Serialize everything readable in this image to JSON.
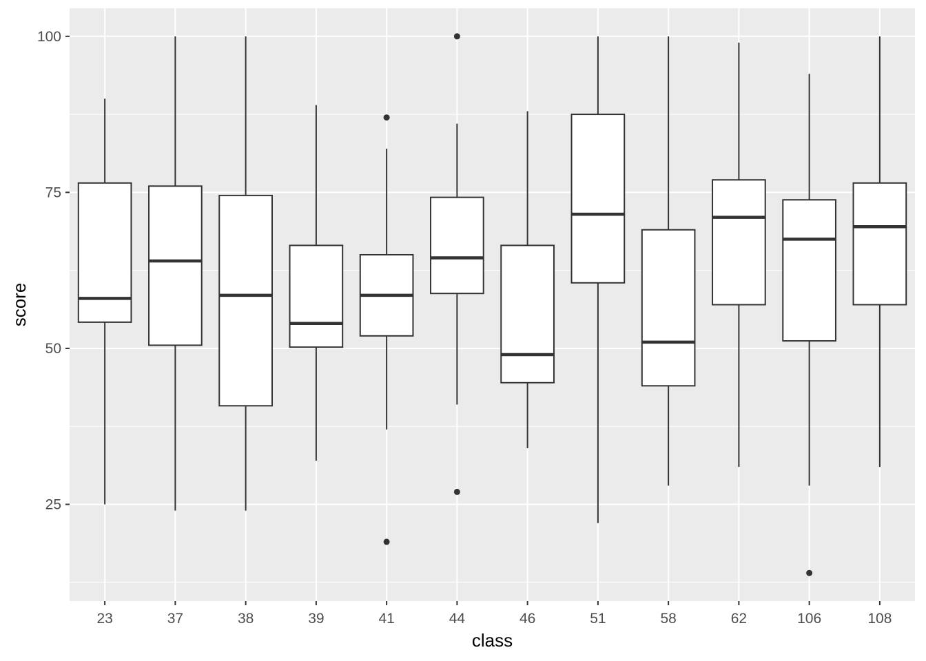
{
  "chart_data": {
    "type": "boxplot",
    "xlabel": "class",
    "ylabel": "score",
    "ylim": [
      9.5,
      104.5
    ],
    "yticks": [
      25,
      50,
      75,
      100
    ],
    "grid": true,
    "colors": {
      "panel": "#ebebeb",
      "grid": "#ffffff",
      "box_fill": "#ffffff",
      "box_stroke": "#333333"
    },
    "categories": [
      "23",
      "37",
      "38",
      "39",
      "41",
      "44",
      "46",
      "51",
      "58",
      "62",
      "106",
      "108"
    ],
    "boxes": [
      {
        "class": "23",
        "whisker_low": 25,
        "q1": 54.2,
        "median": 58,
        "q3": 76.5,
        "whisker_high": 90,
        "outliers": []
      },
      {
        "class": "37",
        "whisker_low": 24,
        "q1": 50.5,
        "median": 64,
        "q3": 76,
        "whisker_high": 100,
        "outliers": []
      },
      {
        "class": "38",
        "whisker_low": 24,
        "q1": 40.8,
        "median": 58.5,
        "q3": 74.5,
        "whisker_high": 100,
        "outliers": []
      },
      {
        "class": "39",
        "whisker_low": 32,
        "q1": 50.2,
        "median": 54,
        "q3": 66.5,
        "whisker_high": 89,
        "outliers": []
      },
      {
        "class": "41",
        "whisker_low": 37,
        "q1": 52,
        "median": 58.5,
        "q3": 65,
        "whisker_high": 82,
        "outliers": [
          87,
          19
        ]
      },
      {
        "class": "44",
        "whisker_low": 41,
        "q1": 58.8,
        "median": 64.5,
        "q3": 74.2,
        "whisker_high": 86,
        "outliers": [
          100,
          27
        ]
      },
      {
        "class": "46",
        "whisker_low": 34,
        "q1": 44.5,
        "median": 49,
        "q3": 66.5,
        "whisker_high": 88,
        "outliers": []
      },
      {
        "class": "51",
        "whisker_low": 22,
        "q1": 60.5,
        "median": 71.5,
        "q3": 87.5,
        "whisker_high": 100,
        "outliers": []
      },
      {
        "class": "58",
        "whisker_low": 28,
        "q1": 44,
        "median": 51,
        "q3": 69,
        "whisker_high": 100,
        "outliers": []
      },
      {
        "class": "62",
        "whisker_low": 31,
        "q1": 57,
        "median": 71,
        "q3": 77,
        "whisker_high": 99,
        "outliers": []
      },
      {
        "class": "106",
        "whisker_low": 28,
        "q1": 51.2,
        "median": 67.5,
        "q3": 73.8,
        "whisker_high": 94,
        "outliers": [
          14
        ]
      },
      {
        "class": "108",
        "whisker_low": 31,
        "q1": 57,
        "median": 69.5,
        "q3": 76.5,
        "whisker_high": 100,
        "outliers": []
      }
    ]
  }
}
